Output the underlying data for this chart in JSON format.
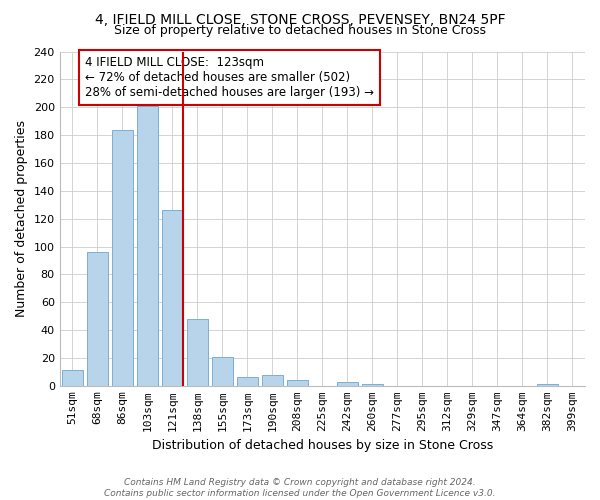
{
  "title": "4, IFIELD MILL CLOSE, STONE CROSS, PEVENSEY, BN24 5PF",
  "subtitle": "Size of property relative to detached houses in Stone Cross",
  "xlabel": "Distribution of detached houses by size in Stone Cross",
  "ylabel": "Number of detached properties",
  "bar_labels": [
    "51sqm",
    "68sqm",
    "86sqm",
    "103sqm",
    "121sqm",
    "138sqm",
    "155sqm",
    "173sqm",
    "190sqm",
    "208sqm",
    "225sqm",
    "242sqm",
    "260sqm",
    "277sqm",
    "295sqm",
    "312sqm",
    "329sqm",
    "347sqm",
    "364sqm",
    "382sqm",
    "399sqm"
  ],
  "bar_values": [
    11,
    96,
    184,
    201,
    126,
    48,
    21,
    6,
    8,
    4,
    0,
    3,
    1,
    0,
    0,
    0,
    0,
    0,
    0,
    1,
    0
  ],
  "highlight_index": 4,
  "bar_color": "#b8d4ea",
  "bar_edge_color": "#7aafd4",
  "vline_index": 4,
  "vline_color": "#cc0000",
  "ylim": [
    0,
    240
  ],
  "yticks": [
    0,
    20,
    40,
    60,
    80,
    100,
    120,
    140,
    160,
    180,
    200,
    220,
    240
  ],
  "annotation_title": "4 IFIELD MILL CLOSE:  123sqm",
  "annotation_line2": "← 72% of detached houses are smaller (502)",
  "annotation_line3": "28% of semi-detached houses are larger (193) →",
  "footer": "Contains HM Land Registry data © Crown copyright and database right 2024.\nContains public sector information licensed under the Open Government Licence v3.0.",
  "background_color": "#ffffff",
  "grid_color": "#cccccc",
  "title_fontsize": 10,
  "subtitle_fontsize": 9,
  "ylabel_fontsize": 9,
  "xlabel_fontsize": 9,
  "tick_fontsize": 8,
  "annotation_fontsize": 8.5
}
